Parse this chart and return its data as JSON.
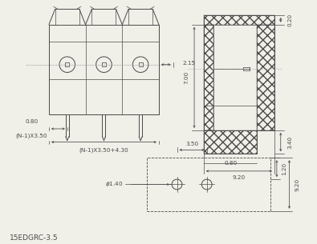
{
  "bg_color": "#f0efe8",
  "line_color": "#4a4a4a",
  "dim_color": "#4a4a4a",
  "title": "15EDGRC-3.5",
  "title_fontsize": 6.5,
  "label_fontsize": 5.2,
  "label_fontsize_sm": 4.8
}
